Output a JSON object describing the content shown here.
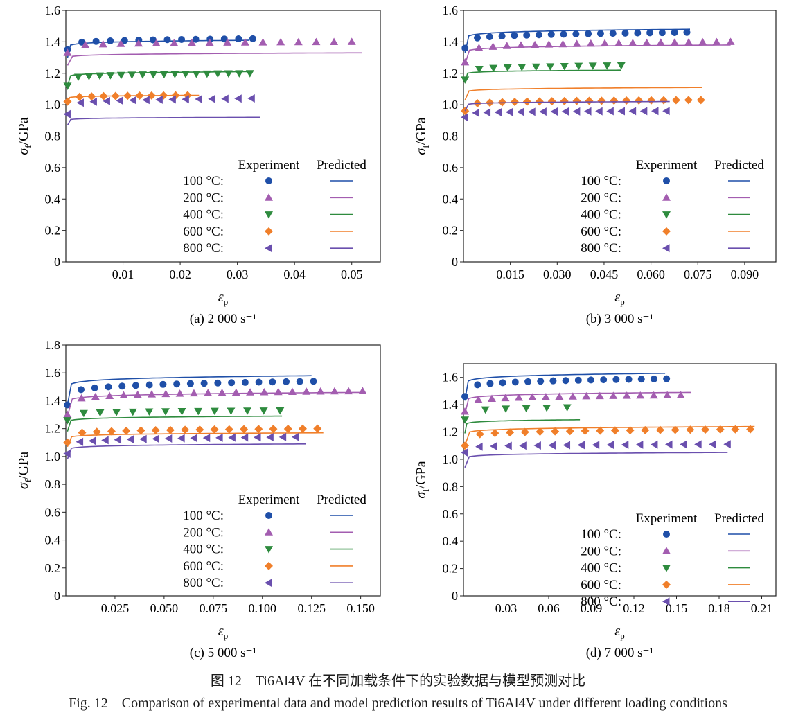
{
  "figure": {
    "caption_cn": "图 12　Ti6Al4V 在不同加载条件下的实验数据与模型预测对比",
    "caption_en": "Fig. 12　Comparison of experimental data and model prediction results of Ti6Al4V under different loading conditions",
    "legend_header_experiment": "Experiment",
    "legend_header_predicted": "Predicted"
  },
  "colors": {
    "100": "#1f4fa8",
    "200": "#a35db0",
    "400": "#2e8b3e",
    "600": "#f07f2a",
    "800": "#6a4fae"
  },
  "chart_data": [
    {
      "type": "scatter+line",
      "subtitle": "(a) 2 000 s⁻¹",
      "xlabel": "εp",
      "ylabel": "σf/GPa",
      "xlim": [
        0,
        0.055
      ],
      "ylim": [
        0,
        1.6
      ],
      "xticks": [
        0.01,
        0.02,
        0.03,
        0.04,
        0.05
      ],
      "xticklabels": [
        "0.01",
        "0.02",
        "0.03",
        "0.04",
        "0.05"
      ],
      "yticks": [
        0,
        0.2,
        0.4,
        0.6,
        0.8,
        1.0,
        1.2,
        1.4,
        1.6
      ],
      "yticklabels": [
        "0",
        "0.2",
        "0.4",
        "0.6",
        "0.8",
        "1.0",
        "1.2",
        "1.4",
        "1.6"
      ],
      "series": [
        {
          "name": "100 °C:",
          "temp": "100",
          "marker": "circle",
          "exp": {
            "x0": 0.0003,
            "x1": 0.0327,
            "n": 14,
            "y0": 1.35,
            "y1": 1.42,
            "k": 0.15
          },
          "pred": {
            "x0": 0.0003,
            "x1": 0.032,
            "y0": 1.3,
            "y1": 1.41,
            "k": 0.08
          }
        },
        {
          "name": "200 °C:",
          "temp": "200",
          "marker": "tri-up",
          "exp": {
            "x0": 0.0003,
            "x1": 0.05,
            "n": 17,
            "y0": 1.33,
            "y1": 1.4,
            "k": 0.12
          },
          "pred": {
            "x0": 0.0003,
            "x1": 0.0518,
            "y0": 1.25,
            "y1": 1.33,
            "k": 0.08
          }
        },
        {
          "name": "400 °C:",
          "temp": "400",
          "marker": "tri-down",
          "exp": {
            "x0": 0.0003,
            "x1": 0.0322,
            "n": 18,
            "y0": 1.12,
            "y1": 1.2,
            "k": 0.12
          },
          "pred": {
            "x0": 0.0003,
            "x1": 0.0322,
            "y0": 1.12,
            "y1": 1.21,
            "k": 0.08
          }
        },
        {
          "name": "600 °C:",
          "temp": "600",
          "marker": "diamond",
          "exp": {
            "x0": 0.0003,
            "x1": 0.0213,
            "n": 11,
            "y0": 1.02,
            "y1": 1.06,
            "k": 0.12
          },
          "pred": {
            "x0": 0.0003,
            "x1": 0.0233,
            "y0": 1.01,
            "y1": 1.06,
            "k": 0.08
          }
        },
        {
          "name": "800 °C:",
          "temp": "800",
          "marker": "tri-left",
          "exp": {
            "x0": 0.0003,
            "x1": 0.0325,
            "n": 15,
            "y0": 0.94,
            "y1": 1.04,
            "k": 0.12
          },
          "pred": {
            "x0": 0.0003,
            "x1": 0.034,
            "y0": 0.87,
            "y1": 0.92,
            "k": 0.08
          }
        }
      ]
    },
    {
      "type": "scatter+line",
      "subtitle": "(b) 3 000 s⁻¹",
      "xlabel": "εp",
      "ylabel": "σf/GPa",
      "xlim": [
        0,
        0.1
      ],
      "ylim": [
        0,
        1.6
      ],
      "xticks": [
        0.015,
        0.03,
        0.045,
        0.06,
        0.075,
        0.09
      ],
      "xticklabels": [
        "0.015",
        "0.030",
        "0.045",
        "0.060",
        "0.075",
        "0.090"
      ],
      "yticks": [
        0,
        0.2,
        0.4,
        0.6,
        0.8,
        1.0,
        1.2,
        1.4,
        1.6
      ],
      "yticklabels": [
        "0",
        "0.2",
        "0.4",
        "0.6",
        "0.8",
        "1.0",
        "1.2",
        "1.4",
        "1.6"
      ],
      "series": [
        {
          "name": "100 °C:",
          "temp": "100",
          "marker": "circle",
          "exp": {
            "x0": 0.0005,
            "x1": 0.0715,
            "n": 19,
            "y0": 1.36,
            "y1": 1.46,
            "k": 0.15
          },
          "pred": {
            "x0": 0.0005,
            "x1": 0.0725,
            "y0": 1.33,
            "y1": 1.48,
            "k": 0.08
          }
        },
        {
          "name": "200 °C:",
          "temp": "200",
          "marker": "tri-up",
          "exp": {
            "x0": 0.0005,
            "x1": 0.0855,
            "n": 20,
            "y0": 1.27,
            "y1": 1.4,
            "k": 0.12
          },
          "pred": {
            "x0": 0.0005,
            "x1": 0.0855,
            "y0": 1.26,
            "y1": 1.38,
            "k": 0.08
          }
        },
        {
          "name": "400 °C:",
          "temp": "400",
          "marker": "tri-down",
          "exp": {
            "x0": 0.0005,
            "x1": 0.0505,
            "n": 12,
            "y0": 1.16,
            "y1": 1.25,
            "k": 0.12
          },
          "pred": {
            "x0": 0.0005,
            "x1": 0.0505,
            "y0": 1.15,
            "y1": 1.22,
            "k": 0.08
          }
        },
        {
          "name": "600 °C:",
          "temp": "600",
          "marker": "diamond",
          "exp": {
            "x0": 0.0005,
            "x1": 0.076,
            "n": 20,
            "y0": 0.96,
            "y1": 1.03,
            "k": 0.12
          },
          "pred": {
            "x0": 0.0005,
            "x1": 0.0765,
            "y0": 1.03,
            "y1": 1.11,
            "k": 0.08
          }
        },
        {
          "name": "800 °C:",
          "temp": "800",
          "marker": "tri-left",
          "exp": {
            "x0": 0.0005,
            "x1": 0.065,
            "n": 19,
            "y0": 0.92,
            "y1": 0.96,
            "k": 0.12
          },
          "pred": {
            "x0": 0.0005,
            "x1": 0.066,
            "y0": 0.96,
            "y1": 1.02,
            "k": 0.08
          }
        }
      ]
    },
    {
      "type": "scatter+line",
      "subtitle": "(c) 5 000 s⁻¹",
      "xlabel": "εp",
      "ylabel": "σf/GPa",
      "xlim": [
        0,
        0.16
      ],
      "ylim": [
        0,
        1.8
      ],
      "xticks": [
        0.025,
        0.05,
        0.075,
        0.1,
        0.125,
        0.15
      ],
      "xticklabels": [
        "0.025",
        "0.050",
        "0.075",
        "0.100",
        "0.125",
        "0.150"
      ],
      "yticks": [
        0,
        0.2,
        0.4,
        0.6,
        0.8,
        1.0,
        1.2,
        1.4,
        1.6,
        1.8
      ],
      "yticklabels": [
        "0",
        "0.2",
        "0.4",
        "0.6",
        "0.8",
        "1.0",
        "1.2",
        "1.4",
        "1.6",
        "1.8"
      ],
      "series": [
        {
          "name": "100 °C:",
          "temp": "100",
          "marker": "circle",
          "exp": {
            "x0": 0.0008,
            "x1": 0.126,
            "n": 19,
            "y0": 1.37,
            "y1": 1.54,
            "k": 0.15
          },
          "pred": {
            "x0": 0.0008,
            "x1": 0.125,
            "y0": 1.37,
            "y1": 1.58,
            "k": 0.08
          }
        },
        {
          "name": "200 °C:",
          "temp": "200",
          "marker": "tri-up",
          "exp": {
            "x0": 0.0008,
            "x1": 0.151,
            "n": 22,
            "y0": 1.3,
            "y1": 1.47,
            "k": 0.12
          },
          "pred": {
            "x0": 0.0008,
            "x1": 0.15,
            "y0": 1.29,
            "y1": 1.46,
            "k": 0.08
          }
        },
        {
          "name": "400 °C:",
          "temp": "400",
          "marker": "tri-down",
          "exp": {
            "x0": 0.0008,
            "x1": 0.109,
            "n": 14,
            "y0": 1.26,
            "y1": 1.33,
            "k": 0.12
          },
          "pred": {
            "x0": 0.0008,
            "x1": 0.11,
            "y0": 1.18,
            "y1": 1.29,
            "k": 0.08
          }
        },
        {
          "name": "600 °C:",
          "temp": "600",
          "marker": "diamond",
          "exp": {
            "x0": 0.0008,
            "x1": 0.128,
            "n": 18,
            "y0": 1.1,
            "y1": 1.2,
            "k": 0.12
          },
          "pred": {
            "x0": 0.0008,
            "x1": 0.131,
            "y0": 1.07,
            "y1": 1.17,
            "k": 0.08
          }
        },
        {
          "name": "800 °C:",
          "temp": "800",
          "marker": "tri-left",
          "exp": {
            "x0": 0.0008,
            "x1": 0.117,
            "n": 19,
            "y0": 1.02,
            "y1": 1.14,
            "k": 0.12
          },
          "pred": {
            "x0": 0.0008,
            "x1": 0.122,
            "y0": 0.98,
            "y1": 1.09,
            "k": 0.08
          }
        }
      ]
    },
    {
      "type": "scatter+line",
      "subtitle": "(d) 7 000 s⁻¹",
      "xlabel": "εp",
      "ylabel": "σf/GPa",
      "xlim": [
        0,
        0.22
      ],
      "ylim": [
        0,
        1.7
      ],
      "xticks": [
        0.03,
        0.06,
        0.09,
        0.12,
        0.15,
        0.18,
        0.21
      ],
      "xticklabels": [
        "0.03",
        "0.06",
        "0.09",
        "0.12",
        "0.15",
        "0.18",
        "0.21"
      ],
      "yticks": [
        0,
        0.2,
        0.4,
        0.6,
        0.8,
        1.0,
        1.2,
        1.4,
        1.6
      ],
      "yticklabels": [
        "0",
        "0.2",
        "0.4",
        "0.6",
        "0.8",
        "1.0",
        "1.2",
        "1.4",
        "1.6"
      ],
      "series": [
        {
          "name": "100 °C:",
          "temp": "100",
          "marker": "circle",
          "exp": {
            "x0": 0.001,
            "x1": 0.143,
            "n": 17,
            "y0": 1.46,
            "y1": 1.59,
            "k": 0.15
          },
          "pred": {
            "x0": 0.001,
            "x1": 0.142,
            "y0": 1.43,
            "y1": 1.63,
            "k": 0.08
          }
        },
        {
          "name": "200 °C:",
          "temp": "200",
          "marker": "tri-up",
          "exp": {
            "x0": 0.001,
            "x1": 0.153,
            "n": 17,
            "y0": 1.35,
            "y1": 1.47,
            "k": 0.12
          },
          "pred": {
            "x0": 0.001,
            "x1": 0.16,
            "y0": 1.33,
            "y1": 1.49,
            "k": 0.08
          }
        },
        {
          "name": "400 °C:",
          "temp": "400",
          "marker": "tri-down",
          "exp": {
            "x0": 0.001,
            "x1": 0.073,
            "n": 6,
            "y0": 1.29,
            "y1": 1.38,
            "k": 0.12
          },
          "pred": {
            "x0": 0.001,
            "x1": 0.082,
            "y0": 1.19,
            "y1": 1.29,
            "k": 0.08
          }
        },
        {
          "name": "600 °C:",
          "temp": "600",
          "marker": "diamond",
          "exp": {
            "x0": 0.001,
            "x1": 0.202,
            "n": 20,
            "y0": 1.1,
            "y1": 1.22,
            "k": 0.12
          },
          "pred": {
            "x0": 0.001,
            "x1": 0.205,
            "y0": 1.1,
            "y1": 1.24,
            "k": 0.08
          }
        },
        {
          "name": "800 °C:",
          "temp": "800",
          "marker": "tri-left",
          "exp": {
            "x0": 0.001,
            "x1": 0.186,
            "n": 19,
            "y0": 1.05,
            "y1": 1.11,
            "k": 0.12
          },
          "pred": {
            "x0": 0.001,
            "x1": 0.186,
            "y0": 0.94,
            "y1": 1.05,
            "k": 0.08
          }
        }
      ]
    }
  ]
}
